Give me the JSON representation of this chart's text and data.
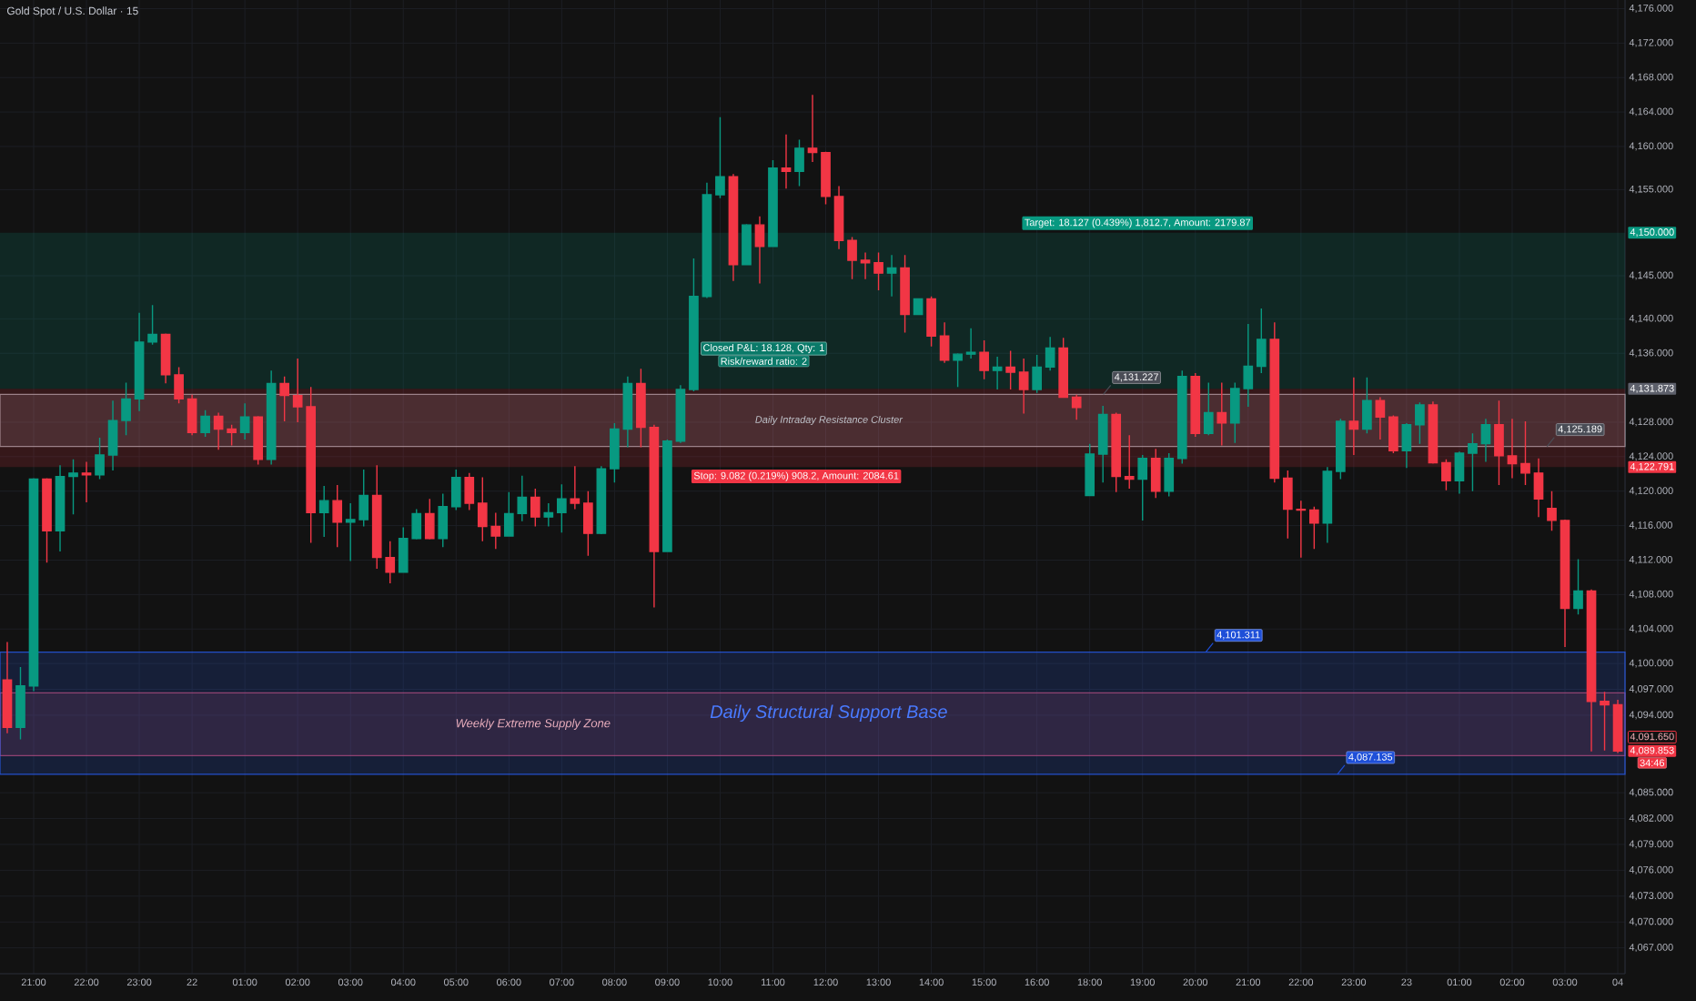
{
  "chart_data": {
    "type": "candlestick",
    "title": "Gold Spot / U.S. Dollar · 15",
    "categories": [
      null,
      null,
      "21:00",
      null,
      null,
      null,
      "22:00",
      null,
      null,
      null,
      "23:00",
      null,
      null,
      null,
      "22",
      null,
      null,
      null,
      "01:00",
      null,
      null,
      null,
      "02:00",
      null,
      null,
      null,
      "03:00",
      null,
      null,
      null,
      "04:00",
      null,
      null,
      null,
      "05:00",
      null,
      null,
      null,
      "06:00",
      null,
      null,
      null,
      "07:00",
      null,
      null,
      null,
      "08:00",
      null,
      null,
      null,
      "09:00",
      null,
      null,
      null,
      "10:00",
      null,
      null,
      null,
      "11:00",
      null,
      null,
      null,
      "12:00",
      null,
      null,
      null,
      "13:00",
      null,
      null,
      null,
      "14:00",
      null,
      null,
      null,
      "15:00",
      null,
      null,
      null,
      "16:00",
      null,
      null,
      null,
      "18:00",
      null,
      null,
      null,
      "19:00",
      null,
      null,
      null,
      "20:00",
      null,
      null,
      null,
      "21:00",
      null,
      null,
      null,
      "22:00",
      null,
      null,
      null,
      "23:00",
      null,
      null,
      null,
      "23",
      null,
      null,
      null,
      "01:00",
      null,
      null,
      null,
      "02:00",
      null,
      null,
      null,
      "03:00",
      null,
      null,
      null,
      "04"
    ],
    "ohlc": [
      [
        4098.1,
        4102.5,
        4091.9,
        4092.6
      ],
      [
        4092.6,
        4099.6,
        4091.2,
        4097.4
      ],
      [
        4097.4,
        4121.5,
        4096.8,
        4121.4
      ],
      [
        4121.4,
        4121.5,
        4111.7,
        4115.4
      ],
      [
        4115.4,
        4123.0,
        4113.0,
        4121.7
      ],
      [
        4121.7,
        4123.7,
        4117.3,
        4122.1
      ],
      [
        4122.1,
        4123.4,
        4118.7,
        4121.9
      ],
      [
        4121.9,
        4126.2,
        4121.4,
        4124.2
      ],
      [
        4124.2,
        4130.5,
        4122.4,
        4128.2
      ],
      [
        4128.2,
        4132.6,
        4126.5,
        4130.7
      ],
      [
        4130.7,
        4140.7,
        4129.3,
        4137.3
      ],
      [
        4137.3,
        4141.6,
        4137.0,
        4138.2
      ],
      [
        4138.2,
        4138.3,
        4132.5,
        4133.5
      ],
      [
        4133.5,
        4134.4,
        4130.2,
        4130.7
      ],
      [
        4130.7,
        4131.2,
        4126.5,
        4126.8
      ],
      [
        4126.8,
        4129.4,
        4126.3,
        4128.7
      ],
      [
        4128.7,
        4129.1,
        4124.8,
        4127.2
      ],
      [
        4127.2,
        4127.7,
        4125.3,
        4126.8
      ],
      [
        4126.8,
        4130.2,
        4126.0,
        4128.6
      ],
      [
        4128.6,
        4128.7,
        4123.1,
        4123.7
      ],
      [
        4123.7,
        4134.0,
        4123.1,
        4132.5
      ],
      [
        4132.5,
        4133.3,
        4128.1,
        4131.1
      ],
      [
        4131.1,
        4135.4,
        4128.0,
        4129.8
      ],
      [
        4129.8,
        4132.1,
        4114.0,
        4117.5
      ],
      [
        4117.5,
        4120.6,
        4114.7,
        4118.9
      ],
      [
        4118.9,
        4120.7,
        4113.5,
        4116.4
      ],
      [
        4116.4,
        4118.6,
        4111.9,
        4116.7
      ],
      [
        4116.7,
        4122.5,
        4115.9,
        4119.5
      ],
      [
        4119.5,
        4123.0,
        4111.0,
        4112.3
      ],
      [
        4112.3,
        4114.2,
        4109.3,
        4110.6
      ],
      [
        4110.6,
        4115.8,
        4110.6,
        4114.5
      ],
      [
        4114.5,
        4117.9,
        4114.4,
        4117.4
      ],
      [
        4117.4,
        4119.1,
        4114.4,
        4114.5
      ],
      [
        4114.5,
        4119.7,
        4113.5,
        4118.2
      ],
      [
        4118.2,
        4122.5,
        4117.8,
        4121.6
      ],
      [
        4121.6,
        4122.1,
        4117.8,
        4118.6
      ],
      [
        4118.6,
        4121.6,
        4114.2,
        4115.9
      ],
      [
        4115.9,
        4117.5,
        4113.3,
        4114.8
      ],
      [
        4114.8,
        4119.9,
        4114.8,
        4117.4
      ],
      [
        4117.4,
        4121.8,
        4116.5,
        4119.3
      ],
      [
        4119.3,
        4120.3,
        4115.9,
        4117.0
      ],
      [
        4117.0,
        4118.6,
        4115.9,
        4117.5
      ],
      [
        4117.5,
        4120.8,
        4115.2,
        4119.1
      ],
      [
        4119.1,
        4122.9,
        4117.9,
        4118.6
      ],
      [
        4118.6,
        4120.0,
        4112.5,
        4115.1
      ],
      [
        4115.1,
        4122.9,
        4115.0,
        4122.6
      ],
      [
        4122.6,
        4127.9,
        4121.0,
        4127.2
      ],
      [
        4127.2,
        4133.3,
        4125.1,
        4132.5
      ],
      [
        4132.5,
        4134.2,
        4125.1,
        4127.4
      ],
      [
        4127.4,
        4127.7,
        4106.5,
        4113.0
      ],
      [
        4113.0,
        4126.0,
        4113.0,
        4125.8
      ],
      [
        4125.8,
        4132.3,
        4125.6,
        4131.8
      ],
      [
        4131.8,
        4147.0,
        4131.6,
        4142.6
      ],
      [
        4142.6,
        4155.8,
        4142.4,
        4154.4
      ],
      [
        4154.4,
        4163.4,
        4154.0,
        4156.5
      ],
      [
        4156.5,
        4156.8,
        4144.4,
        4146.3
      ],
      [
        4146.3,
        4151.0,
        4146.3,
        4150.9
      ],
      [
        4150.9,
        4151.9,
        4144.1,
        4148.4
      ],
      [
        4148.4,
        4158.4,
        4148.4,
        4157.5
      ],
      [
        4157.5,
        4161.4,
        4155.1,
        4157.1
      ],
      [
        4157.1,
        4160.8,
        4155.4,
        4159.8
      ],
      [
        4159.8,
        4166.0,
        4158.2,
        4159.3
      ],
      [
        4159.3,
        4159.4,
        4153.3,
        4154.2
      ],
      [
        4154.2,
        4155.4,
        4148.1,
        4149.1
      ],
      [
        4149.1,
        4149.5,
        4144.6,
        4146.8
      ],
      [
        4146.8,
        4147.7,
        4144.6,
        4146.5
      ],
      [
        4146.5,
        4147.7,
        4143.3,
        4145.3
      ],
      [
        4145.3,
        4147.4,
        4142.6,
        4145.9
      ],
      [
        4145.9,
        4147.4,
        4138.4,
        4140.5
      ],
      [
        4140.5,
        4142.3,
        4140.5,
        4142.3
      ],
      [
        4142.3,
        4142.6,
        4136.8,
        4138.0
      ],
      [
        4138.0,
        4139.6,
        4134.9,
        4135.2
      ],
      [
        4135.2,
        4136.0,
        4132.1,
        4135.9
      ],
      [
        4135.9,
        4138.9,
        4135.4,
        4136.1
      ],
      [
        4136.1,
        4137.5,
        4133.0,
        4134.0
      ],
      [
        4134.0,
        4135.6,
        4131.8,
        4134.4
      ],
      [
        4134.4,
        4136.3,
        4131.8,
        4133.8
      ],
      [
        4133.8,
        4135.4,
        4129.0,
        4131.8
      ],
      [
        4131.8,
        4135.8,
        4131.4,
        4134.4
      ],
      [
        4134.4,
        4137.9,
        4134.0,
        4136.6
      ],
      [
        4136.6,
        4137.8,
        4130.9,
        4130.9
      ],
      [
        4130.9,
        4131.2,
        4128.3,
        4129.7
      ],
      [
        4119.5,
        4125.5,
        4119.5,
        4124.3
      ],
      [
        4124.3,
        4129.9,
        4121.0,
        4128.9
      ],
      [
        4128.9,
        4129.1,
        4119.9,
        4121.7
      ],
      [
        4121.7,
        4126.5,
        4120.3,
        4121.4
      ],
      [
        4121.4,
        4124.2,
        4116.6,
        4123.8
      ],
      [
        4123.8,
        4124.9,
        4119.2,
        4120.0
      ],
      [
        4120.0,
        4124.4,
        4119.4,
        4123.8
      ],
      [
        4123.8,
        4134.0,
        4123.2,
        4133.3
      ],
      [
        4133.3,
        4133.7,
        4126.3,
        4126.7
      ],
      [
        4126.7,
        4132.6,
        4126.5,
        4129.1
      ],
      [
        4129.1,
        4132.6,
        4125.3,
        4127.9
      ],
      [
        4127.9,
        4132.6,
        4125.6,
        4131.9
      ],
      [
        4131.9,
        4139.4,
        4129.8,
        4134.5
      ],
      [
        4134.5,
        4141.2,
        4133.7,
        4137.6
      ],
      [
        4137.6,
        4139.6,
        4121.0,
        4121.5
      ],
      [
        4121.5,
        4122.4,
        4114.5,
        4117.9
      ],
      [
        4117.9,
        4118.9,
        4112.3,
        4117.8
      ],
      [
        4117.8,
        4118.2,
        4113.3,
        4116.3
      ],
      [
        4116.3,
        4122.8,
        4114.0,
        4122.3
      ],
      [
        4122.3,
        4128.4,
        4121.4,
        4128.1
      ],
      [
        4128.1,
        4133.2,
        4124.2,
        4127.2
      ],
      [
        4127.2,
        4133.2,
        4126.7,
        4130.5
      ],
      [
        4130.5,
        4130.9,
        4126.0,
        4128.6
      ],
      [
        4128.6,
        4128.8,
        4124.4,
        4124.7
      ],
      [
        4124.7,
        4127.9,
        4122.7,
        4127.7
      ],
      [
        4127.7,
        4130.3,
        4125.5,
        4130.0
      ],
      [
        4130.0,
        4130.4,
        4123.2,
        4123.3
      ],
      [
        4123.3,
        4123.7,
        4120.1,
        4121.2
      ],
      [
        4121.2,
        4124.6,
        4119.7,
        4124.4
      ],
      [
        4124.4,
        4126.7,
        4120.0,
        4125.5
      ],
      [
        4125.5,
        4128.4,
        4123.4,
        4127.7
      ],
      [
        4127.7,
        4130.5,
        4120.7,
        4124.1
      ],
      [
        4124.1,
        4128.4,
        4121.5,
        4123.2
      ],
      [
        4123.2,
        4128.1,
        4120.7,
        4122.1
      ],
      [
        4122.1,
        4123.8,
        4117.0,
        4119.1
      ],
      [
        4118.0,
        4120.0,
        4115.4,
        4116.6
      ],
      [
        4116.6,
        4116.7,
        4101.9,
        4106.4
      ],
      [
        4106.4,
        4112.1,
        4105.7,
        4108.4
      ],
      [
        4108.4,
        4108.6,
        4089.8,
        4095.6
      ],
      [
        4095.6,
        4096.7,
        4089.9,
        4095.2
      ],
      [
        4095.2,
        4095.8,
        4089.6,
        4089.853
      ]
    ],
    "colors": [
      "#f23645",
      "#089981",
      "#089981",
      "#f23645",
      "#089981",
      "#089981",
      "#f23645",
      "#089981",
      "#089981",
      "#089981",
      "#089981",
      "#089981",
      "#f23645",
      "#f23645",
      "#f23645",
      "#089981",
      "#f23645",
      "#f23645",
      "#089981",
      "#f23645",
      "#089981",
      "#f23645",
      "#f23645",
      "#f23645",
      "#089981",
      "#f23645",
      "#089981",
      "#089981",
      "#f23645",
      "#f23645",
      "#089981",
      "#089981",
      "#f23645",
      "#089981",
      "#089981",
      "#f23645",
      "#f23645",
      "#f23645",
      "#089981",
      "#089981",
      "#f23645",
      "#089981",
      "#089981",
      "#f23645",
      "#f23645",
      "#089981",
      "#089981",
      "#089981",
      "#f23645",
      "#f23645",
      "#089981",
      "#089981",
      "#089981",
      "#089981",
      "#089981",
      "#f23645",
      "#089981",
      "#f23645",
      "#089981",
      "#f23645",
      "#089981",
      "#f23645",
      "#f23645",
      "#f23645",
      "#f23645",
      "#f23645",
      "#f23645",
      "#089981",
      "#f23645",
      "#089981",
      "#f23645",
      "#f23645",
      "#089981",
      "#089981",
      "#f23645",
      "#089981",
      "#f23645",
      "#f23645",
      "#089981",
      "#089981",
      "#f23645",
      "#f23645",
      "#089981",
      "#089981",
      "#f23645",
      "#f23645",
      "#089981",
      "#f23645",
      "#089981",
      "#089981",
      "#f23645",
      "#089981",
      "#f23645",
      "#089981",
      "#089981",
      "#089981",
      "#f23645",
      "#f23645",
      "#f23645",
      "#f23645",
      "#089981",
      "#089981",
      "#f23645",
      "#089981",
      "#f23645",
      "#f23645",
      "#089981",
      "#089981",
      "#f23645",
      "#f23645",
      "#089981",
      "#089981",
      "#089981",
      "#f23645",
      "#f23645",
      "#f23645",
      "#f23645",
      "#f23645",
      "#f23645",
      "#089981",
      "#f23645",
      "#f23645",
      "#f23645"
    ],
    "ylim": [
      4064,
      4177
    ],
    "yticks": [
      {
        "value": 4067,
        "label": "4,067.000"
      },
      {
        "value": 4070,
        "label": "4,070.000"
      },
      {
        "value": 4073,
        "label": "4,073.000"
      },
      {
        "value": 4076,
        "label": "4,076.000"
      },
      {
        "value": 4079,
        "label": "4,079.000"
      },
      {
        "value": 4082,
        "label": "4,082.000"
      },
      {
        "value": 4085,
        "label": "4,085.000"
      },
      {
        "value": 4094,
        "label": "4,094.000"
      },
      {
        "value": 4097,
        "label": "4,097.000"
      },
      {
        "value": 4100,
        "label": "4,100.000"
      },
      {
        "value": 4104,
        "label": "4,104.000"
      },
      {
        "value": 4108,
        "label": "4,108.000"
      },
      {
        "value": 4112,
        "label": "4,112.000"
      },
      {
        "value": 4116,
        "label": "4,116.000"
      },
      {
        "value": 4120,
        "label": "4,120.000"
      },
      {
        "value": 4124,
        "label": "4,124.000"
      },
      {
        "value": 4128,
        "label": "4,128.000"
      },
      {
        "value": 4136,
        "label": "4,136.000"
      },
      {
        "value": 4140,
        "label": "4,140.000"
      },
      {
        "value": 4145,
        "label": "4,145.000"
      },
      {
        "value": 4155,
        "label": "4,155.000"
      },
      {
        "value": 4160,
        "label": "4,160.000"
      },
      {
        "value": 4164,
        "label": "4,164.000"
      },
      {
        "value": 4168,
        "label": "4,168.000"
      },
      {
        "value": 4172,
        "label": "4,172.000"
      },
      {
        "value": 4176,
        "label": "4,176.000"
      }
    ],
    "grid": true,
    "bands": [
      {
        "axis": "y",
        "from": 4089.3,
        "to": 4096.6,
        "label": "Weekly Extreme Supply Zone",
        "color": "#d04a6c"
      },
      {
        "axis": "y",
        "from": 4087.135,
        "to": 4101.311,
        "label": "Daily Structural Support Base",
        "color": "#2962ff"
      },
      {
        "axis": "y",
        "from": 4125.189,
        "to": 4131.227,
        "label": "Daily Intraday Resistance Cluster",
        "color": "#b2b5be"
      },
      {
        "axis": "y",
        "from": 4131.873,
        "to": 4150,
        "label": "Target: 18.127 (0.439%) 1,812.7, Amount: 2179.87",
        "color": "#089981"
      },
      {
        "axis": "y",
        "from": 4122.791,
        "to": 4131.873,
        "label": "Stop: 9.082 (0.219%) 908.2, Amount: 2084.61",
        "color": "#f23645"
      }
    ],
    "annotations": [
      "4,150.000",
      "4,131.873",
      "4,122.791",
      "4,089.853",
      "34:46",
      "4,091.650",
      {
        "text": "4,131.227",
        "y": 4131.227
      },
      {
        "text": "4,125.189",
        "y": 4125.189
      },
      {
        "text": "4,101.311",
        "y": 4101.311
      },
      {
        "text": "4,087.135",
        "y": 4087.135
      },
      "Closed P&L: 18.128, Qty: 1",
      "Risk/reward ratio: 2"
    ]
  }
}
